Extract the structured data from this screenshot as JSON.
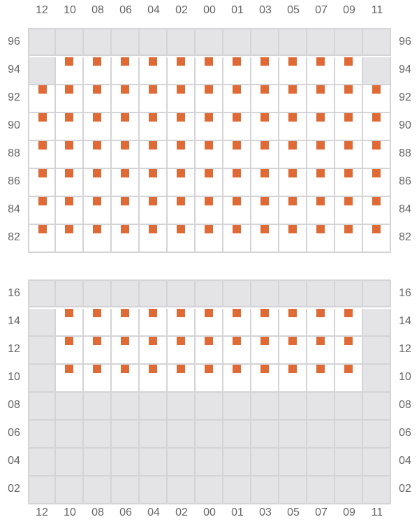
{
  "columns": [
    "12",
    "10",
    "08",
    "06",
    "04",
    "02",
    "00",
    "01",
    "03",
    "05",
    "07",
    "09",
    "11"
  ],
  "colors": {
    "seat": "#e06a35",
    "blocked": "#e4e4e7",
    "grid": "#d4d4d8"
  },
  "sections": [
    {
      "rows": [
        {
          "label": "96",
          "cells": [
            "blocked",
            "blocked",
            "blocked",
            "blocked",
            "blocked",
            "blocked",
            "blocked",
            "blocked",
            "blocked",
            "blocked",
            "blocked",
            "blocked",
            "blocked"
          ]
        },
        {
          "label": "94",
          "cells": [
            "blocked",
            "seat",
            "seat",
            "seat",
            "seat",
            "seat",
            "seat",
            "seat",
            "seat",
            "seat",
            "seat",
            "seat",
            "blocked"
          ]
        },
        {
          "label": "92",
          "cells": [
            "seat",
            "seat",
            "seat",
            "seat",
            "seat",
            "seat",
            "seat",
            "seat",
            "seat",
            "seat",
            "seat",
            "seat",
            "seat"
          ]
        },
        {
          "label": "90",
          "cells": [
            "seat",
            "seat",
            "seat",
            "seat",
            "seat",
            "seat",
            "seat",
            "seat",
            "seat",
            "seat",
            "seat",
            "seat",
            "seat"
          ]
        },
        {
          "label": "88",
          "cells": [
            "seat",
            "seat",
            "seat",
            "seat",
            "seat",
            "seat",
            "seat",
            "seat",
            "seat",
            "seat",
            "seat",
            "seat",
            "seat"
          ]
        },
        {
          "label": "86",
          "cells": [
            "seat",
            "seat",
            "seat",
            "seat",
            "seat",
            "seat",
            "seat",
            "seat",
            "seat",
            "seat",
            "seat",
            "seat",
            "seat"
          ]
        },
        {
          "label": "84",
          "cells": [
            "seat",
            "seat",
            "seat",
            "seat",
            "seat",
            "seat",
            "seat",
            "seat",
            "seat",
            "seat",
            "seat",
            "seat",
            "seat"
          ]
        },
        {
          "label": "82",
          "cells": [
            "seat",
            "seat",
            "seat",
            "seat",
            "seat",
            "seat",
            "seat",
            "seat",
            "seat",
            "seat",
            "seat",
            "seat",
            "seat"
          ]
        }
      ]
    },
    {
      "rows": [
        {
          "label": "16",
          "cells": [
            "blocked",
            "blocked",
            "blocked",
            "blocked",
            "blocked",
            "blocked",
            "blocked",
            "blocked",
            "blocked",
            "blocked",
            "blocked",
            "blocked",
            "blocked"
          ]
        },
        {
          "label": "14",
          "cells": [
            "blocked",
            "seat",
            "seat",
            "seat",
            "seat",
            "seat",
            "seat",
            "seat",
            "seat",
            "seat",
            "seat",
            "seat",
            "blocked"
          ]
        },
        {
          "label": "12",
          "cells": [
            "blocked",
            "seat",
            "seat",
            "seat",
            "seat",
            "seat",
            "seat",
            "seat",
            "seat",
            "seat",
            "seat",
            "seat",
            "blocked"
          ]
        },
        {
          "label": "10",
          "cells": [
            "blocked",
            "seat",
            "seat",
            "seat",
            "seat",
            "seat",
            "seat",
            "seat",
            "seat",
            "seat",
            "seat",
            "seat",
            "blocked"
          ]
        },
        {
          "label": "08",
          "cells": [
            "blocked",
            "blocked",
            "blocked",
            "blocked",
            "blocked",
            "blocked",
            "blocked",
            "blocked",
            "blocked",
            "blocked",
            "blocked",
            "blocked",
            "blocked"
          ]
        },
        {
          "label": "06",
          "cells": [
            "blocked",
            "blocked",
            "blocked",
            "blocked",
            "blocked",
            "blocked",
            "blocked",
            "blocked",
            "blocked",
            "blocked",
            "blocked",
            "blocked",
            "blocked"
          ]
        },
        {
          "label": "04",
          "cells": [
            "blocked",
            "blocked",
            "blocked",
            "blocked",
            "blocked",
            "blocked",
            "blocked",
            "blocked",
            "blocked",
            "blocked",
            "blocked",
            "blocked",
            "blocked"
          ]
        },
        {
          "label": "02",
          "cells": [
            "blocked",
            "blocked",
            "blocked",
            "blocked",
            "blocked",
            "blocked",
            "blocked",
            "blocked",
            "blocked",
            "blocked",
            "blocked",
            "blocked",
            "blocked"
          ]
        }
      ]
    }
  ]
}
